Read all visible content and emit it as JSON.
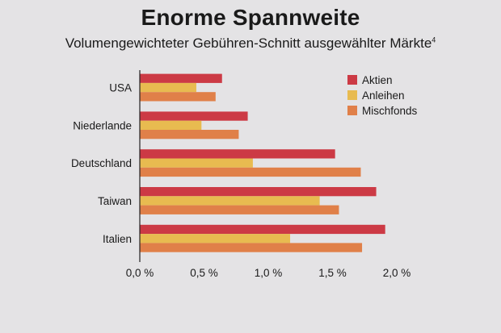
{
  "chart_data": {
    "type": "bar",
    "orientation": "horizontal",
    "title": "Enorme Spannweite",
    "subtitle": "Volumengewichteter Gebühren-Schnitt ausgewählter Märkte",
    "subtitle_footnote": "4",
    "categories": [
      "USA",
      "Niederlande",
      "Deutschland",
      "Taiwan",
      "Italien"
    ],
    "series": [
      {
        "name": "Aktien",
        "color": "#cc3a45",
        "values": [
          0.64,
          0.84,
          1.52,
          1.84,
          1.91
        ]
      },
      {
        "name": "Anleihen",
        "color": "#e8bb50",
        "values": [
          0.44,
          0.48,
          0.88,
          1.4,
          1.17
        ]
      },
      {
        "name": "Mischfonds",
        "color": "#e08049",
        "values": [
          0.59,
          0.77,
          1.72,
          1.55,
          1.73
        ]
      }
    ],
    "xlim": [
      0,
      2.0
    ],
    "xticks": [
      0,
      0.5,
      1.0,
      1.5,
      2.0
    ],
    "xtick_labels": [
      "0,0 %",
      "0,5 %",
      "1,0 %",
      "1,5 %",
      "2,0 %"
    ],
    "grid": false,
    "legend_position": "top-right"
  }
}
